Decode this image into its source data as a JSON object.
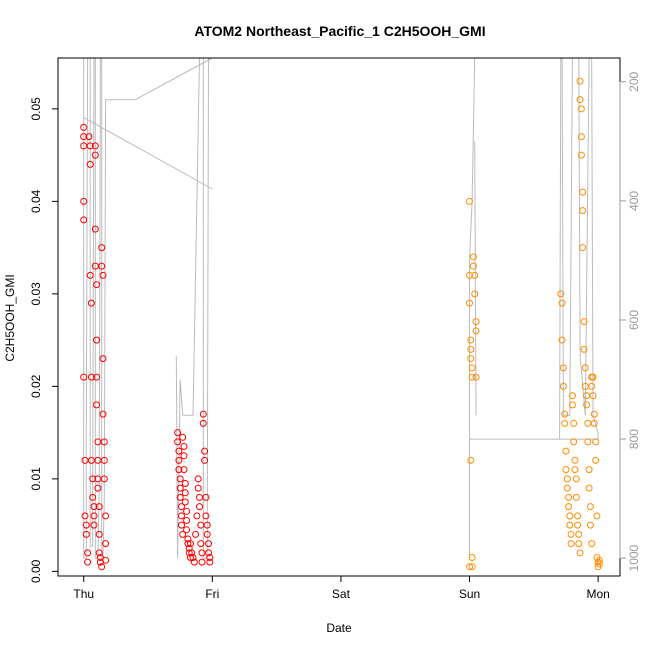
{
  "chart_data": {
    "type": "scatter",
    "title": "ATOM2 Northeast_Pacific_1 C2H5OOH_GMI",
    "xlabel": "Date",
    "ylabel": "C2H5OOH_GMI",
    "x_ticks": [
      "Thu",
      "Fri",
      "Sat",
      "Sun",
      "Mon"
    ],
    "xlim": [
      -0.2,
      4.17
    ],
    "ylim": [
      -0.0005,
      0.0555
    ],
    "y_ticks": [
      0.0,
      0.01,
      0.02,
      0.03,
      0.04,
      0.05
    ],
    "y_tick_labels": [
      "0.00",
      "0.01",
      "0.02",
      "0.03",
      "0.04",
      "0.05"
    ],
    "y2_ticks": [
      200,
      400,
      600,
      800,
      1000
    ],
    "y2_lim": [
      1030,
      160
    ],
    "grid": false,
    "colors": {
      "series_a": "#ff0000",
      "series_b": "#ff8c00",
      "pressure_line": "#bbbbbb"
    },
    "series": [
      {
        "points": [
          [
            0.0,
            0.048
          ],
          [
            0.0,
            0.047
          ],
          [
            0.0,
            0.046
          ],
          [
            0.0,
            0.04
          ],
          [
            0.0,
            0.038
          ],
          [
            0.0,
            0.021
          ],
          [
            0.01,
            0.012
          ],
          [
            0.01,
            0.006
          ],
          [
            0.02,
            0.005
          ],
          [
            0.02,
            0.004
          ],
          [
            0.03,
            0.002
          ],
          [
            0.03,
            0.001
          ],
          [
            0.04,
            0.047
          ],
          [
            0.05,
            0.046
          ],
          [
            0.05,
            0.044
          ],
          [
            0.05,
            0.032
          ],
          [
            0.06,
            0.029
          ],
          [
            0.06,
            0.021
          ],
          [
            0.06,
            0.012
          ],
          [
            0.07,
            0.01
          ],
          [
            0.07,
            0.008
          ],
          [
            0.08,
            0.007
          ],
          [
            0.08,
            0.006
          ],
          [
            0.08,
            0.005
          ],
          [
            0.09,
            0.046
          ],
          [
            0.09,
            0.045
          ],
          [
            0.09,
            0.037
          ],
          [
            0.09,
            0.033
          ],
          [
            0.1,
            0.031
          ],
          [
            0.1,
            0.025
          ],
          [
            0.1,
            0.021
          ],
          [
            0.1,
            0.018
          ],
          [
            0.11,
            0.014
          ],
          [
            0.11,
            0.012
          ],
          [
            0.11,
            0.01
          ],
          [
            0.11,
            0.009
          ],
          [
            0.12,
            0.007
          ],
          [
            0.12,
            0.004
          ],
          [
            0.12,
            0.002
          ],
          [
            0.13,
            0.001
          ],
          [
            0.13,
            0.0015
          ],
          [
            0.14,
            0.0005
          ],
          [
            0.14,
            0.035
          ],
          [
            0.14,
            0.033
          ],
          [
            0.15,
            0.032
          ],
          [
            0.15,
            0.023
          ],
          [
            0.15,
            0.017
          ],
          [
            0.16,
            0.014
          ],
          [
            0.16,
            0.012
          ],
          [
            0.16,
            0.01
          ],
          [
            0.17,
            0.006
          ],
          [
            0.17,
            0.003
          ],
          [
            0.17,
            0.0012
          ],
          [
            0.73,
            0.015
          ],
          [
            0.73,
            0.014
          ],
          [
            0.74,
            0.013
          ],
          [
            0.74,
            0.012
          ],
          [
            0.74,
            0.011
          ],
          [
            0.75,
            0.01
          ],
          [
            0.75,
            0.009
          ],
          [
            0.75,
            0.008
          ],
          [
            0.76,
            0.007
          ],
          [
            0.76,
            0.006
          ],
          [
            0.76,
            0.005
          ],
          [
            0.77,
            0.004
          ],
          [
            0.77,
            0.0145
          ],
          [
            0.78,
            0.0135
          ],
          [
            0.78,
            0.0125
          ],
          [
            0.78,
            0.011
          ],
          [
            0.79,
            0.0095
          ],
          [
            0.79,
            0.0085
          ],
          [
            0.79,
            0.0075
          ],
          [
            0.8,
            0.0065
          ],
          [
            0.8,
            0.0055
          ],
          [
            0.8,
            0.0045
          ],
          [
            0.81,
            0.0035
          ],
          [
            0.81,
            0.003
          ],
          [
            0.82,
            0.0025
          ],
          [
            0.82,
            0.002
          ],
          [
            0.83,
            0.0015
          ],
          [
            0.83,
            0.003
          ],
          [
            0.84,
            0.002
          ],
          [
            0.85,
            0.0015
          ],
          [
            0.86,
            0.001
          ],
          [
            0.87,
            0.004
          ],
          [
            0.88,
            0.006
          ],
          [
            0.89,
            0.01
          ],
          [
            0.89,
            0.009
          ],
          [
            0.9,
            0.008
          ],
          [
            0.9,
            0.007
          ],
          [
            0.91,
            0.005
          ],
          [
            0.91,
            0.003
          ],
          [
            0.92,
            0.002
          ],
          [
            0.92,
            0.001
          ],
          [
            0.93,
            0.017
          ],
          [
            0.93,
            0.016
          ],
          [
            0.94,
            0.013
          ],
          [
            0.94,
            0.012
          ],
          [
            0.95,
            0.008
          ],
          [
            0.95,
            0.006
          ],
          [
            0.96,
            0.005
          ],
          [
            0.96,
            0.004
          ],
          [
            0.97,
            0.003
          ],
          [
            0.97,
            0.002
          ],
          [
            0.98,
            0.0015
          ],
          [
            0.98,
            0.001
          ]
        ]
      },
      {
        "points": [
          [
            3.0,
            0.04
          ],
          [
            3.0,
            0.032
          ],
          [
            3.0,
            0.029
          ],
          [
            3.01,
            0.025
          ],
          [
            3.01,
            0.024
          ],
          [
            3.01,
            0.023
          ],
          [
            3.02,
            0.022
          ],
          [
            3.02,
            0.021
          ],
          [
            3.02,
            0.0005
          ],
          [
            3.02,
            0.0015
          ],
          [
            3.01,
            0.012
          ],
          [
            3.03,
            0.034
          ],
          [
            3.03,
            0.033
          ],
          [
            3.04,
            0.032
          ],
          [
            3.04,
            0.03
          ],
          [
            3.05,
            0.027
          ],
          [
            3.05,
            0.026
          ],
          [
            3.05,
            0.021
          ],
          [
            3.0,
            0.0005
          ],
          [
            3.71,
            0.03
          ],
          [
            3.72,
            0.029
          ],
          [
            3.72,
            0.025
          ],
          [
            3.73,
            0.022
          ],
          [
            3.73,
            0.02
          ],
          [
            3.74,
            0.017
          ],
          [
            3.74,
            0.016
          ],
          [
            3.75,
            0.013
          ],
          [
            3.75,
            0.011
          ],
          [
            3.76,
            0.01
          ],
          [
            3.76,
            0.009
          ],
          [
            3.77,
            0.008
          ],
          [
            3.77,
            0.007
          ],
          [
            3.78,
            0.006
          ],
          [
            3.78,
            0.005
          ],
          [
            3.79,
            0.004
          ],
          [
            3.79,
            0.003
          ],
          [
            3.8,
            0.019
          ],
          [
            3.8,
            0.018
          ],
          [
            3.81,
            0.016
          ],
          [
            3.81,
            0.014
          ],
          [
            3.82,
            0.012
          ],
          [
            3.82,
            0.011
          ],
          [
            3.83,
            0.01
          ],
          [
            3.83,
            0.008
          ],
          [
            3.84,
            0.006
          ],
          [
            3.84,
            0.005
          ],
          [
            3.85,
            0.004
          ],
          [
            3.85,
            0.003
          ],
          [
            3.86,
            0.002
          ],
          [
            3.86,
            0.053
          ],
          [
            3.86,
            0.051
          ],
          [
            3.87,
            0.05
          ],
          [
            3.87,
            0.047
          ],
          [
            3.87,
            0.045
          ],
          [
            3.88,
            0.041
          ],
          [
            3.88,
            0.039
          ],
          [
            3.88,
            0.035
          ],
          [
            3.89,
            0.027
          ],
          [
            3.89,
            0.024
          ],
          [
            3.9,
            0.022
          ],
          [
            3.9,
            0.02
          ],
          [
            3.91,
            0.019
          ],
          [
            3.91,
            0.018
          ],
          [
            3.92,
            0.016
          ],
          [
            3.92,
            0.014
          ],
          [
            3.93,
            0.011
          ],
          [
            3.93,
            0.009
          ],
          [
            3.94,
            0.007
          ],
          [
            3.94,
            0.005
          ],
          [
            3.95,
            0.003
          ],
          [
            3.95,
            0.02
          ],
          [
            3.95,
            0.021
          ],
          [
            3.96,
            0.021
          ],
          [
            3.96,
            0.019
          ],
          [
            3.97,
            0.017
          ],
          [
            3.97,
            0.016
          ],
          [
            3.98,
            0.014
          ],
          [
            3.98,
            0.012
          ],
          [
            3.99,
            0.006
          ],
          [
            3.99,
            0.0015
          ],
          [
            4.0,
            0.001
          ],
          [
            4.0,
            0.0005
          ],
          [
            4.01,
            0.0008
          ],
          [
            4.01,
            0.0012
          ]
        ]
      }
    ]
  }
}
